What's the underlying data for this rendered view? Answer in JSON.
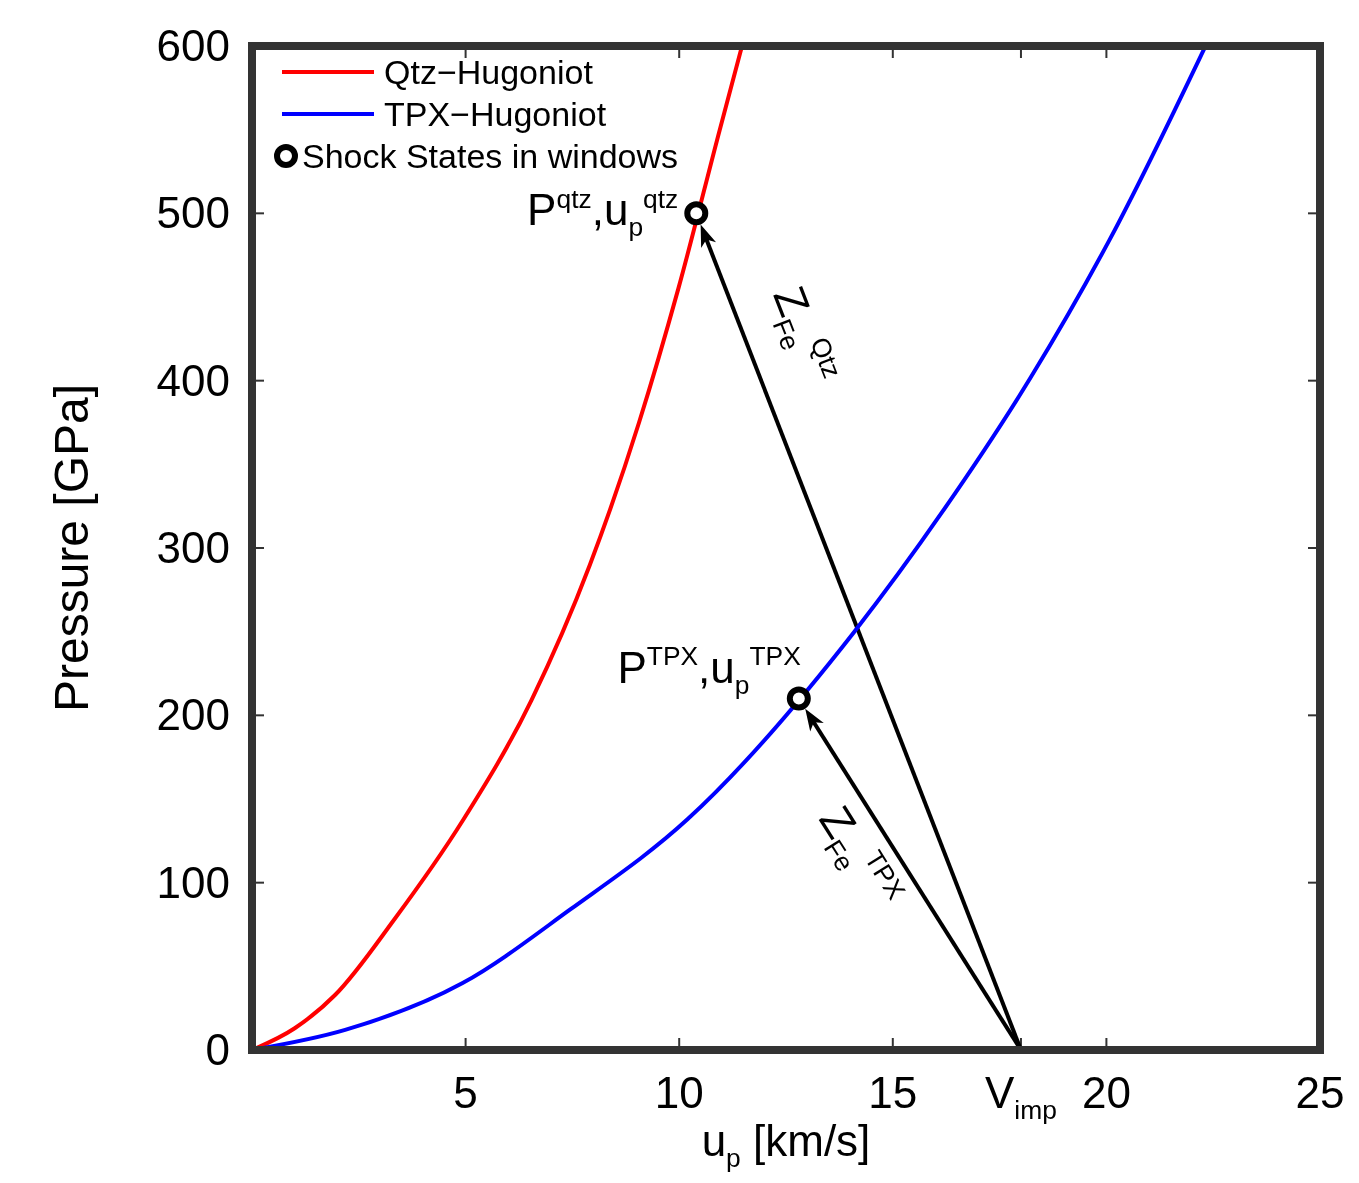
{
  "chart_data": {
    "type": "line",
    "xlabel": "u$_{p}$ [km/s]",
    "ylabel": "Pressure [GPa]",
    "xlim": [
      0,
      25
    ],
    "ylim": [
      0,
      600
    ],
    "xticks": [
      5,
      10,
      15,
      {
        "value": 18,
        "label": "V$_{imp}$"
      },
      20,
      25
    ],
    "yticks": [
      0,
      100,
      200,
      300,
      400,
      500,
      600
    ],
    "legend": "top left",
    "grid": false,
    "series": [
      {
        "name": "Qtz−Hugoniot",
        "color": "#ff0000",
        "x": [
          0,
          1.0,
          1.95,
          3.33,
          4.93,
          6.54,
          7.91,
          9.06,
          9.98,
          10.95,
          11.47
        ],
        "values": [
          0,
          13,
          33,
          78,
          137,
          209,
          290,
          375,
          455,
          550,
          600
        ]
      },
      {
        "name": "TPX−Hugoniot",
        "color": "#0000ff",
        "x": [
          0,
          2.18,
          4.93,
          7.45,
          10.2,
          14.1,
          16.17,
          18.23,
          20.07,
          22.32
        ],
        "values": [
          0,
          12,
          40,
          84,
          138,
          250,
          322,
          402,
          484,
          600
        ]
      },
      {
        "name": "Shock States in windows",
        "type": "scatter",
        "marker": "circle",
        "color": "#000000",
        "x": [
          10.4,
          12.8
        ],
        "values": [
          500,
          210
        ]
      }
    ],
    "annotations": [
      {
        "text": "P$^{qtz}$,u$_{p}$$^{qtz}$",
        "x": 10.4,
        "y": 500
      },
      {
        "text": "P$^{TPX}$,u$_{p}$$^{TPX}$",
        "x": 12.8,
        "y": 210
      },
      "Z$_{Fe}$$^{Qtz}$",
      "Z$_{Fe}$$^{TPX}$"
    ]
  }
}
